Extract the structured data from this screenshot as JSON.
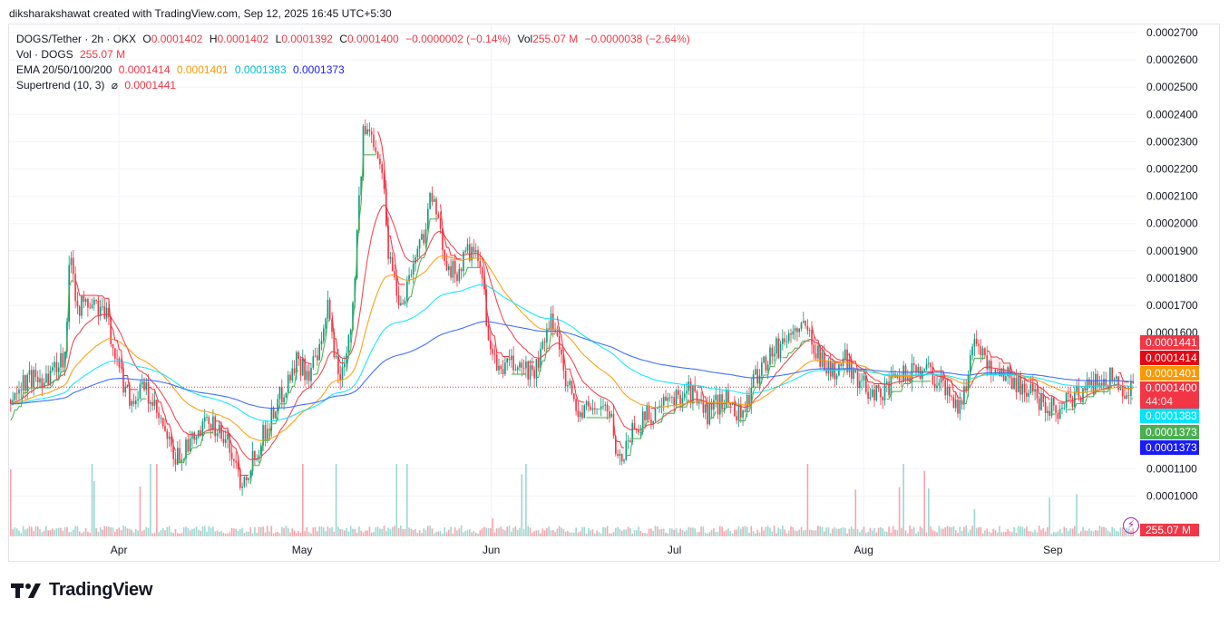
{
  "header": {
    "created_line": "diksharakshawat created with TradingView.com, Sep 12, 2025 16:45 UTC+5:30"
  },
  "legend": {
    "symbol": "DOGS/Tether · 2h · OKX",
    "o_label": "O",
    "o_value": "0.0001402",
    "h_label": "H",
    "h_value": "0.0001402",
    "l_label": "L",
    "l_value": "0.0001392",
    "c_label": "C",
    "c_value": "0.0001400",
    "change": "−0.0000002 (−0.14%)",
    "vol_label": "Vol",
    "vol_value": "255.07 M",
    "vol_change": "−0.0000038 (−2.64%)",
    "vol_line_label": "Vol · DOGS",
    "vol_line_value": "255.07 M",
    "ema_label": "EMA 20/50/100/200",
    "ema20": "0.0001414",
    "ema50": "0.0001401",
    "ema100": "0.0001383",
    "ema200": "0.0001373",
    "supertrend_label": "Supertrend (10, 3)",
    "supertrend_symbol": "⌀",
    "supertrend_value": "0.0001441"
  },
  "badges": {
    "supertrend": "0.0001441",
    "ema20": "0.0001414",
    "ema50": "0.0001401",
    "price": "0.0001400",
    "countdown": "44:04",
    "ema100": "0.0001383",
    "ema200_green": "0.0001373",
    "ema200_blue": "0.0001373",
    "volume": "255.07 M"
  },
  "footer": {
    "brand": "TradingView"
  },
  "colors": {
    "up": "#26a69a",
    "down": "#f23645",
    "ema20": "#f23645",
    "ema50": "#ff9800",
    "ema100": "#00e5ff",
    "ema200": "#2962ff",
    "supertrend_up": "#4caf50",
    "supertrend_down": "#f23645"
  },
  "chart_data": {
    "type": "candlestick",
    "title": "DOGS/Tether · 2h · OKX",
    "y_ticks": [
      "0.0002700",
      "0.0002600",
      "0.0002500",
      "0.0002400",
      "0.0002300",
      "0.0002200",
      "0.0002100",
      "0.0002000",
      "0.0001900",
      "0.0001800",
      "0.0001700",
      "0.0001600",
      "0.0001100",
      "0.0001000"
    ],
    "x_ticks": [
      "Apr",
      "May",
      "Jun",
      "Jul",
      "Aug",
      "Sep"
    ],
    "ylim": [
      9.35e-05,
      0.000272
    ],
    "price_path": [
      [
        "2025-03-14",
        0.000135
      ],
      [
        "2025-03-17",
        0.000143
      ],
      [
        "2025-03-20",
        0.000144
      ],
      [
        "2025-03-23",
        0.000152
      ],
      [
        "2025-03-24",
        0.000192
      ],
      [
        "2025-03-25",
        0.00017
      ],
      [
        "2025-03-28",
        0.00017
      ],
      [
        "2025-03-30",
        0.000165
      ],
      [
        "2025-04-01",
        0.000145
      ],
      [
        "2025-04-03",
        0.000135
      ],
      [
        "2025-04-05",
        0.00014
      ],
      [
        "2025-04-08",
        0.000125
      ],
      [
        "2025-04-10",
        0.000113
      ],
      [
        "2025-04-13",
        0.00012
      ],
      [
        "2025-04-16",
        0.000128
      ],
      [
        "2025-04-19",
        0.000118
      ],
      [
        "2025-04-21",
        0.000105
      ],
      [
        "2025-04-24",
        0.00012
      ],
      [
        "2025-04-27",
        0.000135
      ],
      [
        "2025-04-30",
        0.00015
      ],
      [
        "2025-05-02",
        0.000145
      ],
      [
        "2025-05-04",
        0.000153
      ],
      [
        "2025-05-05",
        0.00017
      ],
      [
        "2025-05-07",
        0.000142
      ],
      [
        "2025-05-09",
        0.000165
      ],
      [
        "2025-05-11",
        0.000235
      ],
      [
        "2025-05-13",
        0.00023
      ],
      [
        "2025-05-14",
        0.00022
      ],
      [
        "2025-05-15",
        0.00019
      ],
      [
        "2025-05-17",
        0.00017
      ],
      [
        "2025-05-19",
        0.000185
      ],
      [
        "2025-05-21",
        0.000198
      ],
      [
        "2025-05-22",
        0.000212
      ],
      [
        "2025-05-24",
        0.00019
      ],
      [
        "2025-05-26",
        0.00018
      ],
      [
        "2025-05-28",
        0.00019
      ],
      [
        "2025-05-30",
        0.000185
      ],
      [
        "2025-06-01",
        0.00015
      ],
      [
        "2025-06-02",
        0.000147
      ],
      [
        "2025-06-05",
        0.000148
      ],
      [
        "2025-06-08",
        0.000145
      ],
      [
        "2025-06-11",
        0.000165
      ],
      [
        "2025-06-13",
        0.000145
      ],
      [
        "2025-06-15",
        0.00013
      ],
      [
        "2025-06-18",
        0.000133
      ],
      [
        "2025-06-20",
        0.000132
      ],
      [
        "2025-06-22",
        0.000112
      ],
      [
        "2025-06-24",
        0.000125
      ],
      [
        "2025-06-27",
        0.00013
      ],
      [
        "2025-06-30",
        0.000134
      ],
      [
        "2025-07-03",
        0.00014
      ],
      [
        "2025-07-06",
        0.00013
      ],
      [
        "2025-07-09",
        0.000136
      ],
      [
        "2025-07-12",
        0.00013
      ],
      [
        "2025-07-15",
        0.000148
      ],
      [
        "2025-07-18",
        0.000155
      ],
      [
        "2025-07-21",
        0.000162
      ],
      [
        "2025-07-23",
        0.00016
      ],
      [
        "2025-07-25",
        0.00015
      ],
      [
        "2025-07-27",
        0.000145
      ],
      [
        "2025-07-29",
        0.00015
      ],
      [
        "2025-08-01",
        0.00014
      ],
      [
        "2025-08-04",
        0.000138
      ],
      [
        "2025-08-08",
        0.000145
      ],
      [
        "2025-08-11",
        0.000148
      ],
      [
        "2025-08-14",
        0.00014
      ],
      [
        "2025-08-17",
        0.000132
      ],
      [
        "2025-08-19",
        0.00016
      ],
      [
        "2025-08-21",
        0.000148
      ],
      [
        "2025-08-24",
        0.000145
      ],
      [
        "2025-08-27",
        0.00014
      ],
      [
        "2025-08-30",
        0.000135
      ],
      [
        "2025-09-02",
        0.000132
      ],
      [
        "2025-09-05",
        0.000138
      ],
      [
        "2025-09-08",
        0.000142
      ],
      [
        "2025-09-10",
        0.000144
      ],
      [
        "2025-09-12",
        0.00014
      ]
    ],
    "last_price": 0.00014,
    "ema": {
      "ema20": 0.0001414,
      "ema50": 0.0001401,
      "ema100": 0.0001383,
      "ema200": 0.0001373
    },
    "supertrend": 0.0001441,
    "volume_last": "255.07 M"
  }
}
